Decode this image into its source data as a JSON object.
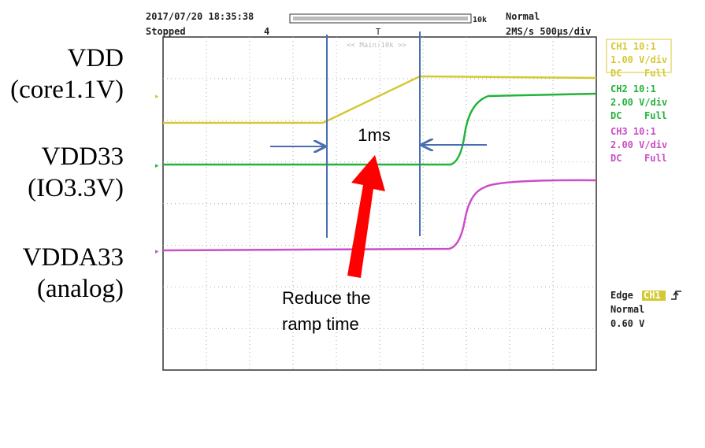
{
  "header": {
    "timestamp": "2017/07/20 18:35:38",
    "status": "Stopped",
    "count": "4",
    "record_length": "10k",
    "mode": "Normal",
    "timebase": "2MS/s 500µs/div",
    "main_label": "<< Main:10k >>"
  },
  "channels": [
    {
      "name": "CH1 10:1",
      "scale": "1.00 V/div",
      "coupling": "DC",
      "bandwidth": "Full"
    },
    {
      "name": "CH2 10:1",
      "scale": "2.00 V/div",
      "coupling": "DC",
      "bandwidth": "Full"
    },
    {
      "name": "CH3 10:1",
      "scale": "2.00 V/div",
      "coupling": "DC",
      "bandwidth": "Full"
    }
  ],
  "trigger": {
    "type": "Edge",
    "source": "CH1",
    "mode": "Normal",
    "level": "0.60 V"
  },
  "labels": [
    {
      "name": "VDD",
      "detail": "(core1.1V)"
    },
    {
      "name": "VDD33",
      "detail": "(IO3.3V)"
    },
    {
      "name": "VDDA33",
      "detail": "(analog)"
    }
  ],
  "annotations": {
    "interval": "1ms",
    "note_line1": "Reduce the",
    "note_line2": "ramp time"
  }
}
